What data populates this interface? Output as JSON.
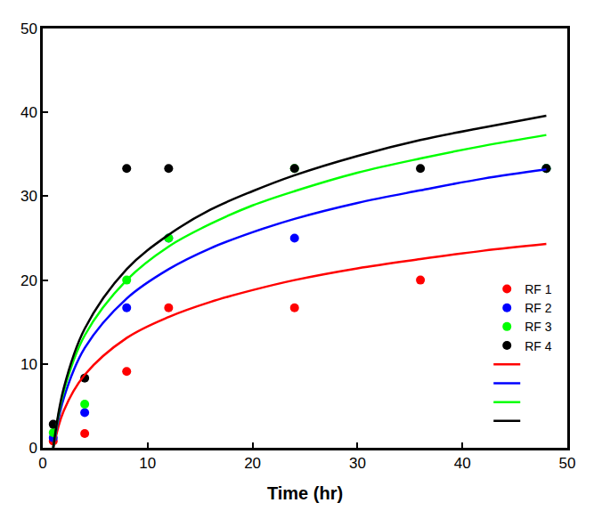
{
  "chart_data": {
    "type": "scatter",
    "x_label": "Time (hr)",
    "xlim": [
      0,
      50
    ],
    "xticks": [
      0,
      10,
      20,
      30,
      40,
      50
    ],
    "ylim": [
      0,
      50
    ],
    "yticks": [
      0,
      10,
      20,
      30,
      40,
      50
    ],
    "grid": false,
    "legend": "lower right",
    "series": [
      {
        "name": "RF 1",
        "type": "scatter",
        "marker": "circle",
        "color": "#ff0000",
        "x": [
          1,
          4,
          8,
          12,
          24,
          36
        ],
        "values": [
          0.8,
          1.7,
          9.1,
          16.7,
          16.7,
          20
        ]
      },
      {
        "name": "RF 2",
        "type": "scatter",
        "marker": "circle",
        "color": "#0000ff",
        "x": [
          1,
          4,
          8,
          12,
          24,
          48
        ],
        "values": [
          1.2,
          4.2,
          16.7,
          25,
          25,
          33.3
        ]
      },
      {
        "name": "RF 3",
        "type": "scatter",
        "marker": "circle",
        "color": "#00ff00",
        "x": [
          1,
          4,
          8,
          12,
          24,
          48
        ],
        "values": [
          1.8,
          5.2,
          20,
          25,
          33.3,
          33.3
        ]
      },
      {
        "name": "RF 4",
        "type": "scatter",
        "marker": "circle",
        "color": "#000000",
        "x": [
          1,
          4,
          8,
          12,
          24,
          36,
          48
        ],
        "values": [
          2.8,
          8.3,
          33.3,
          33.3,
          33.3,
          33.3,
          33.3
        ]
      },
      {
        "type": "line",
        "line_style": "solid",
        "color": "#ff0000",
        "x": [
          1,
          2,
          4,
          8,
          12,
          16,
          20,
          24,
          30,
          36,
          42,
          48
        ],
        "values": [
          0,
          4.4,
          8.7,
          13.1,
          15.6,
          17.4,
          18.8,
          20.0,
          21.4,
          22.5,
          23.5,
          24.3
        ]
      },
      {
        "type": "line",
        "line_style": "solid",
        "color": "#0000ff",
        "x": [
          1,
          2,
          4,
          8,
          12,
          16,
          20,
          24,
          30,
          36,
          42,
          48
        ],
        "values": [
          0,
          5.9,
          11.9,
          17.8,
          21.3,
          23.8,
          25.7,
          27.3,
          29.2,
          30.7,
          32.1,
          33.2
        ]
      },
      {
        "type": "line",
        "line_style": "solid",
        "color": "#00ff00",
        "x": [
          1,
          2,
          4,
          8,
          12,
          16,
          20,
          24,
          30,
          36,
          42,
          48
        ],
        "values": [
          0,
          6.7,
          13.4,
          20.0,
          24.0,
          26.7,
          28.9,
          30.6,
          32.8,
          34.5,
          36.0,
          37.3
        ]
      },
      {
        "type": "line",
        "line_style": "solid",
        "color": "#000000",
        "x": [
          1,
          2,
          4,
          8,
          12,
          16,
          20,
          24,
          30,
          36,
          42,
          48
        ],
        "values": [
          0,
          7.1,
          14.2,
          21.3,
          25.4,
          28.4,
          30.6,
          32.5,
          34.8,
          36.7,
          38.2,
          39.6
        ]
      }
    ]
  }
}
